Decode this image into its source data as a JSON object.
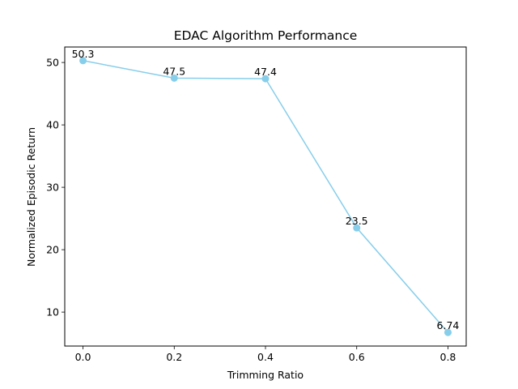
{
  "chart_data": {
    "type": "line",
    "title": "EDAC Algorithm Performance",
    "xlabel": "Trimming Ratio",
    "ylabel": "Normalized Episodic Return",
    "x": [
      0.0,
      0.2,
      0.4,
      0.6,
      0.8
    ],
    "series": [
      {
        "values": [
          50.3,
          47.5,
          47.4,
          23.5,
          6.74
        ],
        "labels": [
          "50.3",
          "47.5",
          "47.4",
          "23.5",
          "6.74"
        ],
        "color": "#87ceeb",
        "marker": "circle"
      }
    ],
    "xticks": [
      0.0,
      0.2,
      0.4,
      0.6,
      0.8
    ],
    "xtick_labels": [
      "0.0",
      "0.2",
      "0.4",
      "0.6",
      "0.8"
    ],
    "yticks": [
      10,
      20,
      30,
      40,
      50
    ],
    "ytick_labels": [
      "10",
      "20",
      "30",
      "40",
      "50"
    ],
    "xlim": [
      -0.04,
      0.84
    ],
    "ylim": [
      4.56,
      52.48
    ],
    "grid": false,
    "legend": "none"
  }
}
